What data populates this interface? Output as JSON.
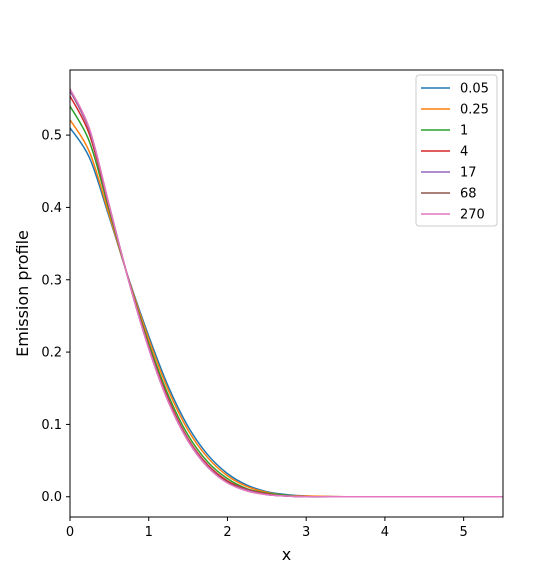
{
  "chart_data": {
    "type": "line",
    "title": "",
    "xlabel": "x",
    "ylabel": "Emission profile",
    "xlim": [
      0,
      5.5
    ],
    "ylim": [
      -0.028,
      0.59
    ],
    "xticks": [
      0,
      1,
      2,
      3,
      4,
      5
    ],
    "xtick_labels": [
      "0",
      "1",
      "2",
      "3",
      "4",
      "5"
    ],
    "yticks": [
      0.0,
      0.1,
      0.2,
      0.3,
      0.4,
      0.5
    ],
    "ytick_labels": [
      "0.0",
      "0.1",
      "0.2",
      "0.3",
      "0.4",
      "0.5"
    ],
    "grid": false,
    "legend_position": "top-right",
    "x": [
      0,
      0.25,
      0.5,
      0.75,
      1,
      1.25,
      1.5,
      1.75,
      2,
      2.25,
      2.5,
      2.75,
      3,
      3.5,
      4,
      4.5,
      5,
      5.5
    ],
    "series": [
      {
        "name": "0.05",
        "color": "#1f77b4",
        "values": [
          0.51,
          0.468,
          0.386,
          0.3,
          0.222,
          0.152,
          0.097,
          0.058,
          0.032,
          0.016,
          0.007,
          0.003,
          0.001,
          0.0,
          0.0,
          0.0,
          0.0,
          0.0
        ]
      },
      {
        "name": "0.25",
        "color": "#ff7f0e",
        "values": [
          0.521,
          0.476,
          0.389,
          0.299,
          0.218,
          0.147,
          0.092,
          0.054,
          0.029,
          0.014,
          0.006,
          0.002,
          0.001,
          0.0,
          0.0,
          0.0,
          0.0,
          0.0
        ]
      },
      {
        "name": "1",
        "color": "#2ca02c",
        "values": [
          0.54,
          0.49,
          0.395,
          0.298,
          0.212,
          0.14,
          0.085,
          0.048,
          0.025,
          0.011,
          0.005,
          0.002,
          0.0,
          0.0,
          0.0,
          0.0,
          0.0,
          0.0
        ]
      },
      {
        "name": "4",
        "color": "#d62728",
        "values": [
          0.554,
          0.5,
          0.399,
          0.298,
          0.208,
          0.135,
          0.08,
          0.044,
          0.022,
          0.01,
          0.004,
          0.001,
          0.0,
          0.0,
          0.0,
          0.0,
          0.0,
          0.0
        ]
      },
      {
        "name": "17",
        "color": "#9467bd",
        "values": [
          0.561,
          0.505,
          0.401,
          0.297,
          0.206,
          0.132,
          0.078,
          0.042,
          0.02,
          0.009,
          0.003,
          0.001,
          0.0,
          0.0,
          0.0,
          0.0,
          0.0,
          0.0
        ]
      },
      {
        "name": "68",
        "color": "#8c564b",
        "values": [
          0.563,
          0.507,
          0.402,
          0.297,
          0.205,
          0.131,
          0.077,
          0.041,
          0.02,
          0.008,
          0.003,
          0.001,
          0.0,
          0.0,
          0.0,
          0.0,
          0.0,
          0.0
        ]
      },
      {
        "name": "270",
        "color": "#e377c2",
        "values": [
          0.564,
          0.508,
          0.402,
          0.297,
          0.205,
          0.131,
          0.077,
          0.041,
          0.019,
          0.008,
          0.003,
          0.001,
          0.0,
          0.0,
          0.0,
          0.0,
          0.0,
          0.0
        ]
      }
    ]
  }
}
